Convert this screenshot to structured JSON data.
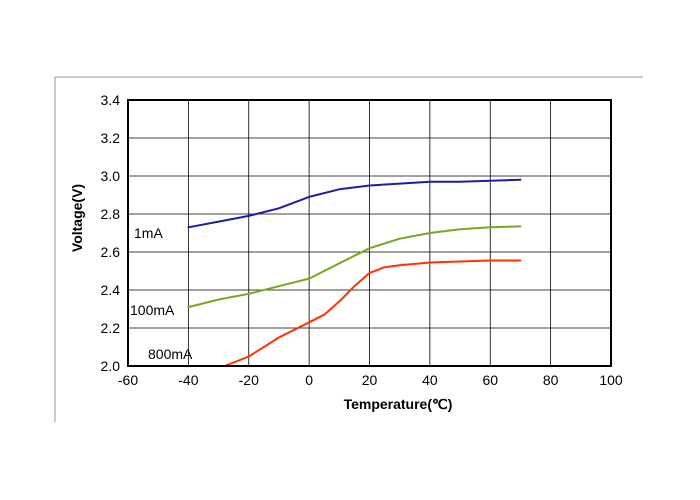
{
  "chart_data": {
    "type": "line",
    "xlabel": "Temperature(℃)",
    "ylabel": "Voltage(V)",
    "xlim": [
      -60,
      100
    ],
    "ylim": [
      2.0,
      3.4
    ],
    "x_ticks": [
      -60,
      -40,
      -20,
      0,
      20,
      40,
      60,
      80,
      100
    ],
    "y_ticks": [
      2.0,
      2.2,
      2.4,
      2.6,
      2.8,
      3.0,
      3.2,
      3.4
    ],
    "grid": true,
    "series": [
      {
        "name": "1mA",
        "color": "#1e1ea0",
        "points": [
          [
            -40,
            2.73
          ],
          [
            -30,
            2.76
          ],
          [
            -20,
            2.79
          ],
          [
            -10,
            2.83
          ],
          [
            0,
            2.89
          ],
          [
            10,
            2.93
          ],
          [
            20,
            2.95
          ],
          [
            30,
            2.96
          ],
          [
            40,
            2.97
          ],
          [
            50,
            2.97
          ],
          [
            60,
            2.975
          ],
          [
            70,
            2.98
          ]
        ]
      },
      {
        "name": "100mA",
        "color": "#7aa51e",
        "points": [
          [
            -40,
            2.31
          ],
          [
            -30,
            2.35
          ],
          [
            -20,
            2.38
          ],
          [
            -10,
            2.42
          ],
          [
            0,
            2.46
          ],
          [
            10,
            2.54
          ],
          [
            20,
            2.62
          ],
          [
            30,
            2.67
          ],
          [
            40,
            2.7
          ],
          [
            50,
            2.72
          ],
          [
            60,
            2.73
          ],
          [
            70,
            2.735
          ]
        ]
      },
      {
        "name": "800mA",
        "color": "#ff3300",
        "points": [
          [
            -28,
            2.0
          ],
          [
            -20,
            2.05
          ],
          [
            -10,
            2.15
          ],
          [
            0,
            2.23
          ],
          [
            5,
            2.27
          ],
          [
            10,
            2.34
          ],
          [
            15,
            2.42
          ],
          [
            20,
            2.49
          ],
          [
            25,
            2.52
          ],
          [
            30,
            2.53
          ],
          [
            40,
            2.545
          ],
          [
            50,
            2.55
          ],
          [
            60,
            2.555
          ],
          [
            70,
            2.555
          ]
        ]
      }
    ]
  }
}
